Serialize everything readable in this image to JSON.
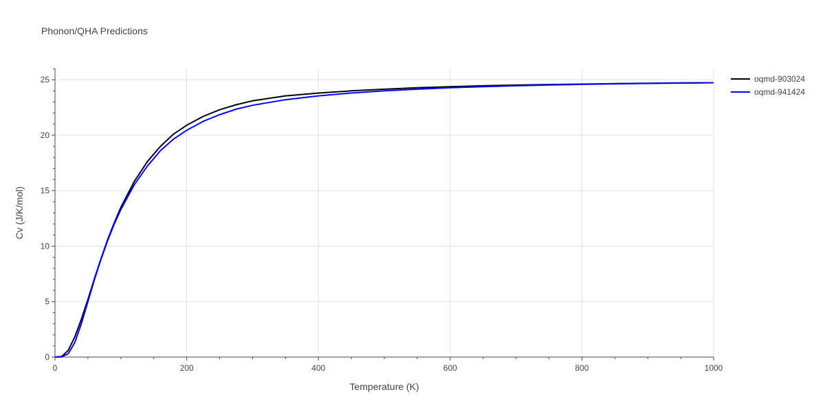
{
  "title": "Phonon/QHA Predictions",
  "chart_data": {
    "type": "line",
    "title": "Phonon/QHA Predictions",
    "xlabel": "Temperature (K)",
    "ylabel": "Cv (J/K/mol)",
    "xlim": [
      0,
      1000
    ],
    "ylim": [
      0,
      26
    ],
    "xticks": [
      0,
      200,
      400,
      600,
      800,
      1000
    ],
    "yticks": [
      0,
      5,
      10,
      15,
      20,
      25
    ],
    "grid": true,
    "legend_position": "top-right",
    "series": [
      {
        "name": "oqmd-903024",
        "color": "#000000",
        "x": [
          0,
          10,
          20,
          30,
          40,
          50,
          60,
          70,
          80,
          90,
          100,
          120,
          140,
          160,
          180,
          200,
          225,
          250,
          275,
          300,
          350,
          400,
          450,
          500,
          550,
          600,
          650,
          700,
          750,
          800,
          850,
          900,
          950,
          1000
        ],
        "y": [
          0,
          0.05,
          0.6,
          1.8,
          3.4,
          5.2,
          7.1,
          8.9,
          10.6,
          12.1,
          13.5,
          15.8,
          17.6,
          19.0,
          20.1,
          20.9,
          21.7,
          22.3,
          22.75,
          23.1,
          23.55,
          23.8,
          24.0,
          24.15,
          24.28,
          24.38,
          24.46,
          24.52,
          24.57,
          24.61,
          24.65,
          24.68,
          24.71,
          24.73
        ]
      },
      {
        "name": "oqmd-941424",
        "color": "#0000ff",
        "x": [
          0,
          10,
          20,
          30,
          40,
          50,
          60,
          70,
          80,
          90,
          100,
          120,
          140,
          160,
          180,
          200,
          225,
          250,
          275,
          300,
          350,
          400,
          450,
          500,
          550,
          600,
          650,
          700,
          750,
          800,
          850,
          900,
          950,
          1000
        ],
        "y": [
          0,
          0.02,
          0.3,
          1.3,
          3.0,
          5.0,
          7.0,
          8.85,
          10.5,
          12.0,
          13.3,
          15.5,
          17.2,
          18.6,
          19.65,
          20.45,
          21.25,
          21.85,
          22.35,
          22.7,
          23.2,
          23.55,
          23.8,
          24.0,
          24.15,
          24.28,
          24.38,
          24.46,
          24.53,
          24.58,
          24.63,
          24.67,
          24.7,
          24.73
        ]
      }
    ]
  }
}
